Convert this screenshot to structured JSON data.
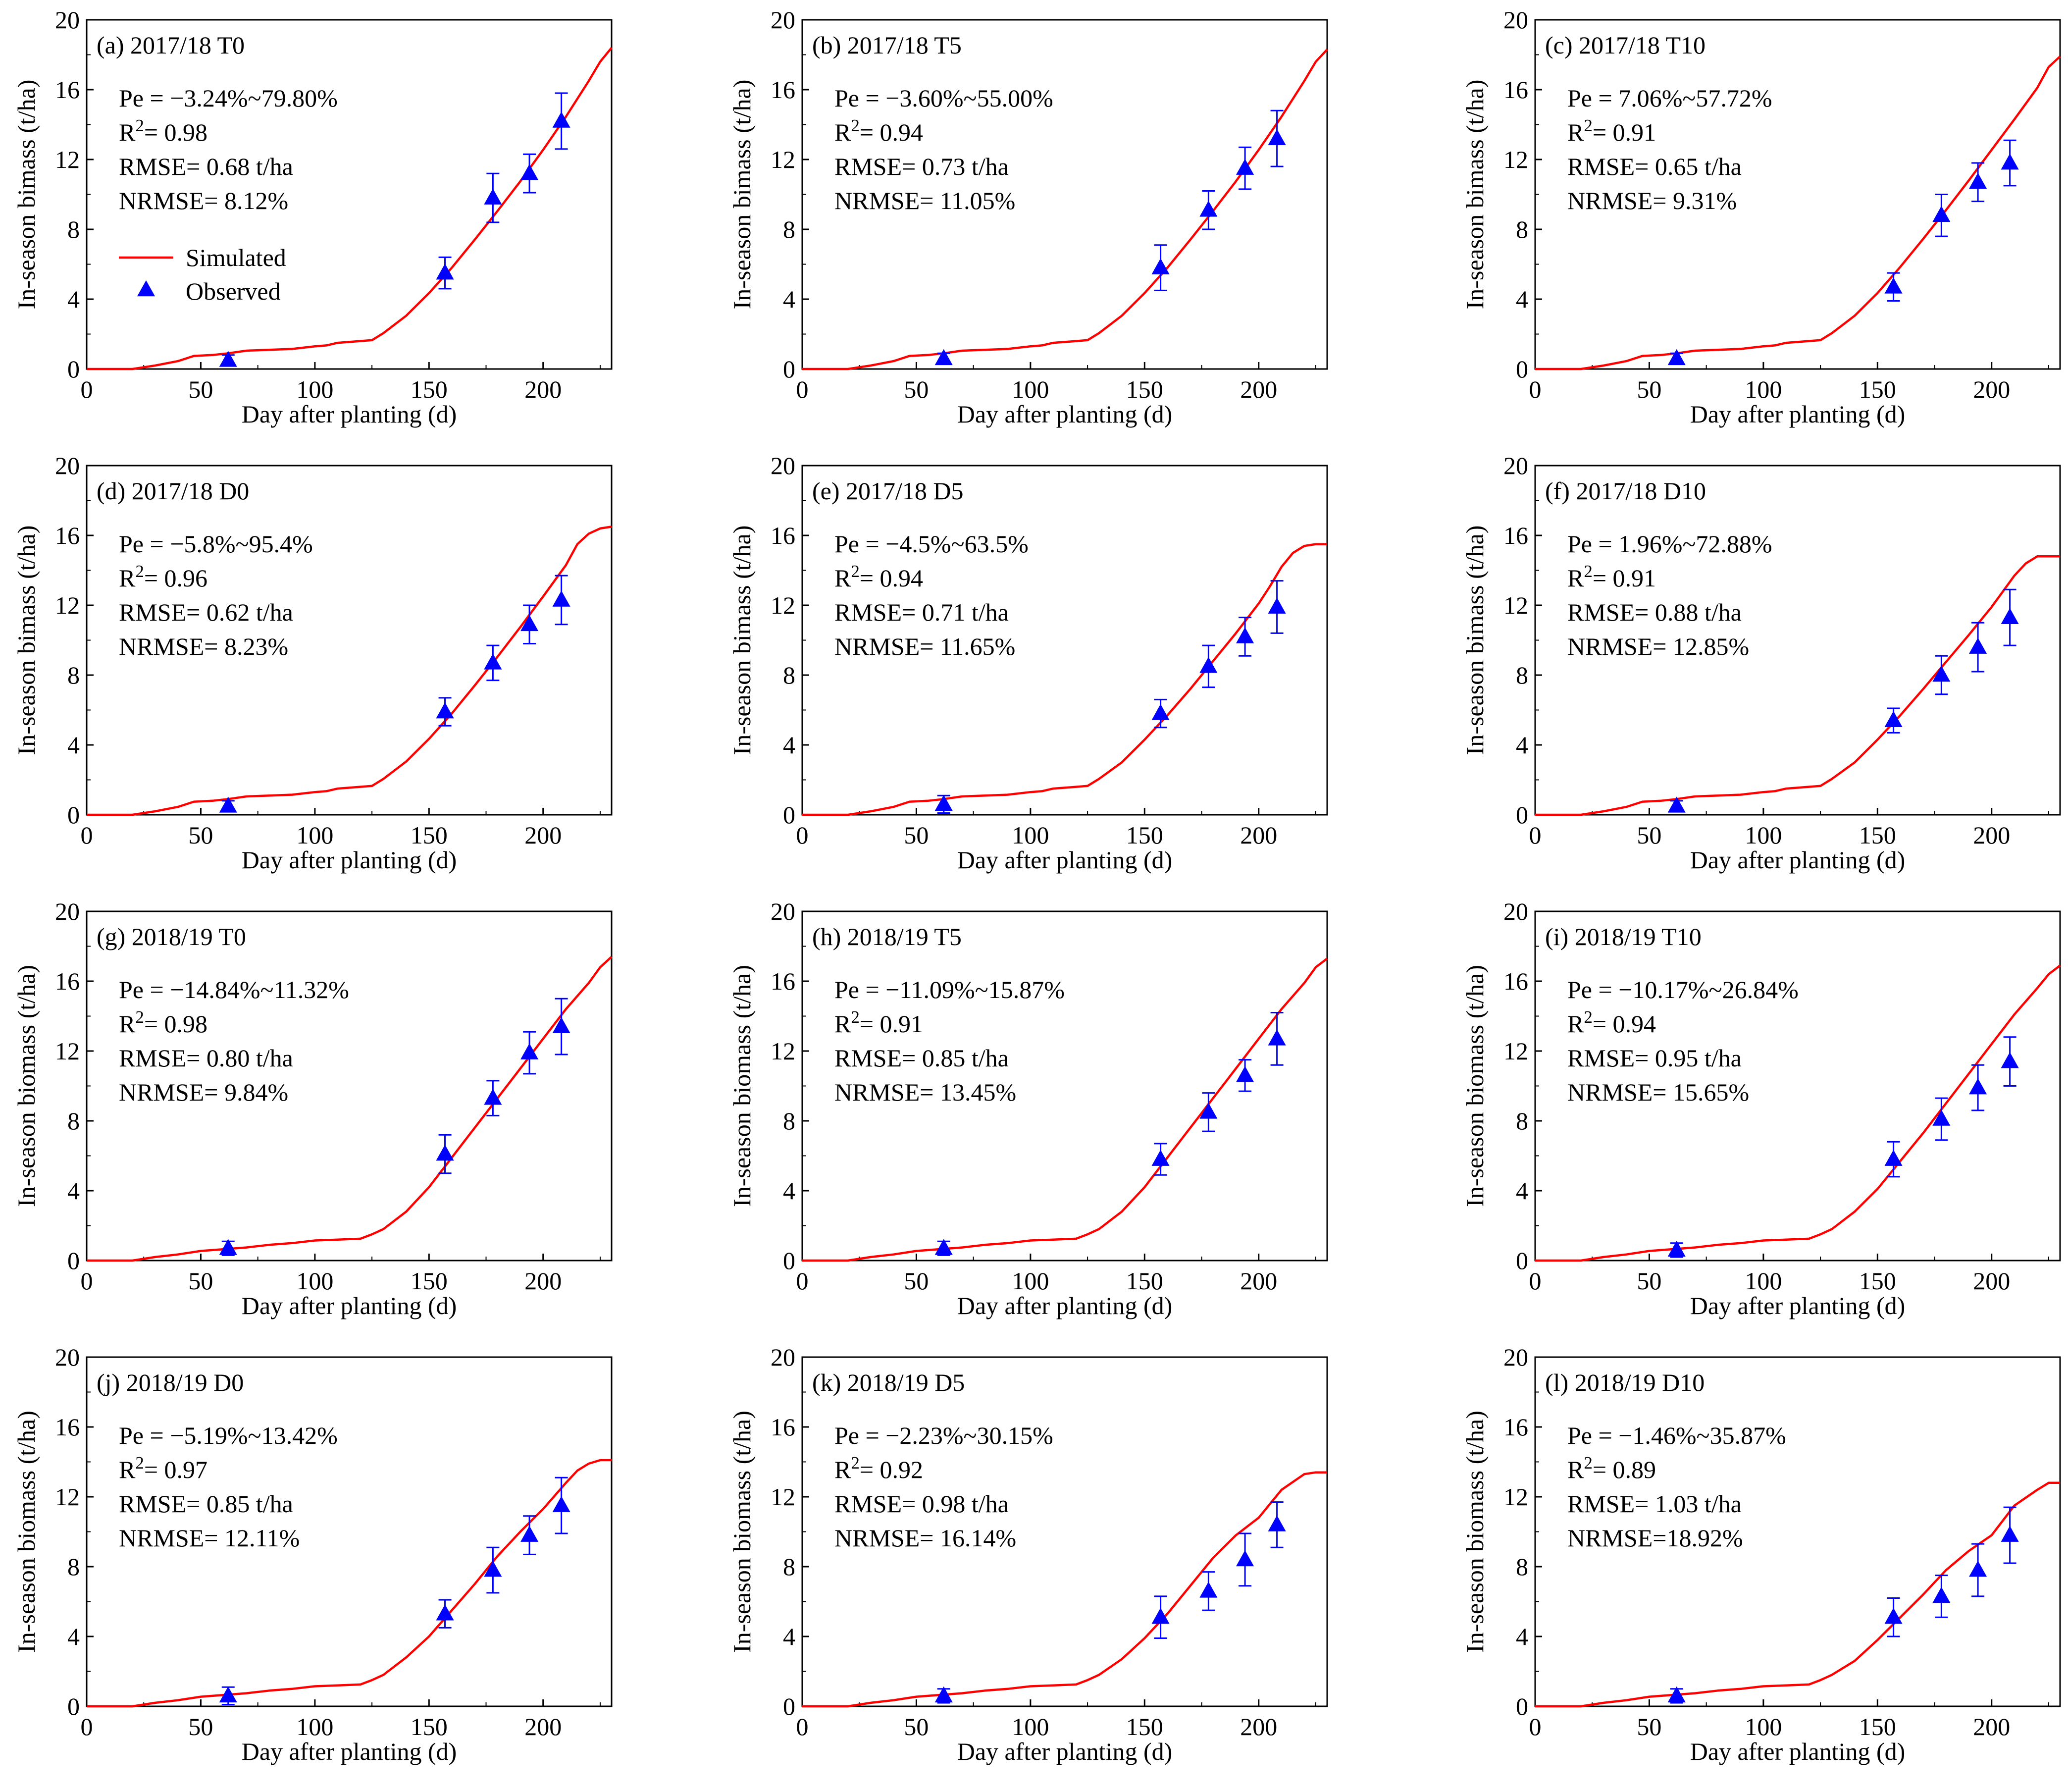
{
  "colors": {
    "simulated": "#ff0000",
    "observed": "#0000ff",
    "axis": "#000000"
  },
  "chart_data": [
    {
      "type": "line",
      "title": "(a) 2017/18 T0",
      "ylabel": "In-season bimass (t/ha)",
      "stats": [
        "Pe = −3.24%~79.80%",
        "R2= 0.98",
        "RMSE= 0.68 t/ha",
        "NRMSE= 8.12%"
      ],
      "simulated": {
        "name": "Simulated",
        "x": [
          0,
          20,
          30,
          40,
          47,
          55,
          62,
          70,
          80,
          90,
          100,
          105,
          110,
          115,
          125,
          130,
          140,
          150,
          160,
          170,
          180,
          190,
          200,
          210,
          220,
          225,
          230
        ],
        "y": [
          0,
          0,
          0.2,
          0.45,
          0.75,
          0.8,
          0.9,
          1.05,
          1.1,
          1.15,
          1.3,
          1.35,
          1.5,
          1.55,
          1.65,
          2.05,
          3.05,
          4.35,
          5.8,
          7.4,
          9.05,
          10.75,
          12.55,
          14.45,
          16.5,
          17.6,
          18.4
        ]
      },
      "observed": {
        "name": "Observed",
        "x": [
          62,
          157,
          178,
          194,
          208
        ],
        "y": [
          0.5,
          5.5,
          9.8,
          11.2,
          14.2
        ],
        "err": [
          0.3,
          0.9,
          1.4,
          1.1,
          1.6
        ]
      },
      "show_legend": true
    },
    {
      "type": "line",
      "title": "(b) 2017/18 T5",
      "ylabel": "In-season bimass (t/ha)",
      "stats": [
        "Pe = −3.60%~55.00%",
        "R2= 0.94",
        "RMSE= 0.73 t/ha",
        "NRMSE= 11.05%"
      ],
      "simulated": {
        "name": "Simulated",
        "x": [
          0,
          20,
          30,
          40,
          47,
          55,
          62,
          70,
          80,
          90,
          100,
          105,
          110,
          115,
          125,
          130,
          140,
          150,
          160,
          170,
          180,
          190,
          200,
          210,
          220,
          225,
          230
        ],
        "y": [
          0,
          0,
          0.2,
          0.45,
          0.75,
          0.8,
          0.9,
          1.05,
          1.1,
          1.15,
          1.3,
          1.35,
          1.5,
          1.55,
          1.65,
          2.05,
          3.05,
          4.35,
          5.8,
          7.4,
          9.05,
          10.75,
          12.55,
          14.45,
          16.5,
          17.6,
          18.3
        ]
      },
      "observed": {
        "name": "Observed",
        "x": [
          62,
          157,
          178,
          194,
          208
        ],
        "y": [
          0.6,
          5.8,
          9.1,
          11.5,
          13.2
        ],
        "err": [
          0.3,
          1.3,
          1.1,
          1.2,
          1.6
        ]
      }
    },
    {
      "type": "line",
      "title": "(c) 2017/18 T10",
      "ylabel": "In-season bimass (t/ha)",
      "stats": [
        "Pe = 7.06%~57.72%",
        "R2= 0.91",
        "RMSE= 0.65 t/ha",
        "NRMSE= 9.31%"
      ],
      "simulated": {
        "name": "Simulated",
        "x": [
          0,
          20,
          30,
          40,
          47,
          55,
          62,
          70,
          80,
          90,
          100,
          105,
          110,
          115,
          125,
          130,
          140,
          150,
          160,
          170,
          180,
          190,
          200,
          210,
          220,
          225,
          230
        ],
        "y": [
          0,
          0,
          0.2,
          0.45,
          0.75,
          0.8,
          0.9,
          1.05,
          1.1,
          1.15,
          1.3,
          1.35,
          1.5,
          1.55,
          1.65,
          2.05,
          3.05,
          4.35,
          5.85,
          7.45,
          9.1,
          10.8,
          12.55,
          14.3,
          16.1,
          17.3,
          17.9
        ]
      },
      "observed": {
        "name": "Observed",
        "x": [
          62,
          157,
          178,
          194,
          208
        ],
        "y": [
          0.6,
          4.7,
          8.8,
          10.7,
          11.8
        ],
        "err": [
          0.3,
          0.8,
          1.2,
          1.1,
          1.3
        ]
      }
    },
    {
      "type": "line",
      "title": "(d) 2017/18 D0",
      "ylabel": "In-season bimass (t/ha)",
      "stats": [
        "Pe = −5.8%~95.4%",
        "R2= 0.96",
        "RMSE= 0.62 t/ha",
        "NRMSE= 8.23%"
      ],
      "simulated": {
        "name": "Simulated",
        "x": [
          0,
          20,
          30,
          40,
          47,
          55,
          62,
          70,
          80,
          90,
          100,
          105,
          110,
          115,
          125,
          130,
          140,
          150,
          160,
          170,
          180,
          190,
          200,
          210,
          215,
          220,
          225,
          230
        ],
        "y": [
          0,
          0,
          0.2,
          0.45,
          0.75,
          0.8,
          0.9,
          1.05,
          1.1,
          1.15,
          1.3,
          1.35,
          1.5,
          1.55,
          1.65,
          2.05,
          3.05,
          4.35,
          5.8,
          7.4,
          9.05,
          10.75,
          12.5,
          14.3,
          15.5,
          16.1,
          16.4,
          16.5
        ]
      },
      "observed": {
        "name": "Observed",
        "x": [
          62,
          157,
          178,
          194,
          208
        ],
        "y": [
          0.5,
          5.9,
          8.7,
          10.9,
          12.3
        ],
        "err": [
          0.3,
          0.8,
          1.0,
          1.1,
          1.4
        ]
      }
    },
    {
      "type": "line",
      "title": "(e) 2017/18 D5",
      "ylabel": "In-season bimass (t/ha)",
      "stats": [
        "Pe = −4.5%~63.5%",
        "R2= 0.94",
        "RMSE= 0.71 t/ha",
        "NRMSE= 11.65%"
      ],
      "simulated": {
        "name": "Simulated",
        "x": [
          0,
          20,
          30,
          40,
          47,
          55,
          62,
          70,
          80,
          90,
          100,
          105,
          110,
          115,
          125,
          130,
          140,
          150,
          160,
          170,
          180,
          190,
          200,
          205,
          210,
          215,
          220,
          225,
          230
        ],
        "y": [
          0,
          0,
          0.2,
          0.45,
          0.75,
          0.8,
          0.9,
          1.05,
          1.1,
          1.15,
          1.3,
          1.35,
          1.5,
          1.55,
          1.65,
          2.05,
          3.0,
          4.3,
          5.7,
          7.2,
          8.8,
          10.4,
          12.1,
          13.1,
          14.2,
          15.0,
          15.4,
          15.5,
          15.5
        ]
      },
      "observed": {
        "name": "Observed",
        "x": [
          62,
          157,
          178,
          194,
          208
        ],
        "y": [
          0.6,
          5.8,
          8.5,
          10.2,
          11.9
        ],
        "err": [
          0.5,
          0.8,
          1.2,
          1.1,
          1.5
        ]
      }
    },
    {
      "type": "line",
      "title": "(f) 2017/18 D10",
      "ylabel": "In-season bimass (t/ha)",
      "stats": [
        "Pe = 1.96%~72.88%",
        "R2= 0.91",
        "RMSE= 0.88 t/ha",
        "NRMSE= 12.85%"
      ],
      "simulated": {
        "name": "Simulated",
        "x": [
          0,
          20,
          30,
          40,
          47,
          55,
          62,
          70,
          80,
          90,
          100,
          105,
          110,
          115,
          125,
          130,
          140,
          150,
          160,
          170,
          180,
          190,
          200,
          205,
          210,
          215,
          220,
          225,
          230
        ],
        "y": [
          0,
          0,
          0.2,
          0.45,
          0.75,
          0.8,
          0.9,
          1.05,
          1.1,
          1.15,
          1.3,
          1.35,
          1.5,
          1.55,
          1.65,
          2.05,
          3.0,
          4.3,
          5.7,
          7.2,
          8.75,
          10.3,
          11.9,
          12.8,
          13.7,
          14.4,
          14.8,
          14.8,
          14.8
        ]
      },
      "observed": {
        "name": "Observed",
        "x": [
          62,
          157,
          178,
          194,
          208
        ],
        "y": [
          0.5,
          5.4,
          8.0,
          9.6,
          11.3
        ],
        "err": [
          0.3,
          0.7,
          1.1,
          1.4,
          1.6
        ]
      }
    },
    {
      "type": "line",
      "title": "(g) 2018/19 T0",
      "ylabel": "In-season biomass (t/ha)",
      "stats": [
        "Pe = −14.84%~11.32%",
        "R2= 0.98",
        "RMSE= 0.80 t/ha",
        "NRMSE= 9.84%"
      ],
      "simulated": {
        "name": "Simulated",
        "x": [
          0,
          20,
          30,
          40,
          50,
          60,
          70,
          80,
          90,
          100,
          110,
          120,
          125,
          130,
          140,
          150,
          160,
          170,
          180,
          190,
          200,
          210,
          220,
          225,
          230
        ],
        "y": [
          0,
          0,
          0.2,
          0.35,
          0.55,
          0.65,
          0.75,
          0.9,
          1.0,
          1.15,
          1.2,
          1.25,
          1.5,
          1.8,
          2.8,
          4.2,
          5.9,
          7.6,
          9.3,
          11.0,
          12.7,
          14.4,
          15.9,
          16.8,
          17.4
        ]
      },
      "observed": {
        "name": "Observed",
        "x": [
          62,
          157,
          178,
          194,
          208
        ],
        "y": [
          0.7,
          6.1,
          9.3,
          11.9,
          13.4
        ],
        "err": [
          0.4,
          1.1,
          1.0,
          1.2,
          1.6
        ]
      }
    },
    {
      "type": "line",
      "title": "(h) 2018/19 T5",
      "ylabel": "In-season biomass (t/ha)",
      "stats": [
        "Pe = −11.09%~15.87%",
        "R2= 0.91",
        "RMSE= 0.85 t/ha",
        "NRMSE= 13.45%"
      ],
      "simulated": {
        "name": "Simulated",
        "x": [
          0,
          20,
          30,
          40,
          50,
          60,
          70,
          80,
          90,
          100,
          110,
          120,
          125,
          130,
          140,
          150,
          160,
          170,
          180,
          190,
          200,
          210,
          220,
          225,
          230
        ],
        "y": [
          0,
          0,
          0.2,
          0.35,
          0.55,
          0.65,
          0.75,
          0.9,
          1.0,
          1.15,
          1.2,
          1.25,
          1.5,
          1.8,
          2.8,
          4.2,
          5.9,
          7.6,
          9.3,
          11.0,
          12.7,
          14.4,
          15.9,
          16.8,
          17.3
        ]
      },
      "observed": {
        "name": "Observed",
        "x": [
          62,
          157,
          178,
          194,
          208
        ],
        "y": [
          0.7,
          5.8,
          8.5,
          10.6,
          12.7
        ],
        "err": [
          0.4,
          0.9,
          1.1,
          0.9,
          1.5
        ]
      }
    },
    {
      "type": "line",
      "title": "(i) 2018/19 T10",
      "ylabel": "In-season biomass (t/ha)",
      "stats": [
        "Pe = −10.17%~26.84%",
        "R2= 0.94",
        "RMSE= 0.95 t/ha",
        "NRMSE= 15.65%"
      ],
      "simulated": {
        "name": "Simulated",
        "x": [
          0,
          20,
          30,
          40,
          50,
          60,
          70,
          80,
          90,
          100,
          110,
          120,
          125,
          130,
          140,
          150,
          160,
          170,
          180,
          190,
          200,
          210,
          220,
          225,
          230
        ],
        "y": [
          0,
          0,
          0.2,
          0.35,
          0.55,
          0.65,
          0.75,
          0.9,
          1.0,
          1.15,
          1.2,
          1.25,
          1.5,
          1.8,
          2.8,
          4.1,
          5.7,
          7.3,
          9.0,
          10.7,
          12.4,
          14.1,
          15.6,
          16.4,
          16.9
        ]
      },
      "observed": {
        "name": "Observed",
        "x": [
          62,
          157,
          178,
          194,
          208
        ],
        "y": [
          0.6,
          5.8,
          8.1,
          9.9,
          11.4
        ],
        "err": [
          0.4,
          1.0,
          1.2,
          1.3,
          1.4
        ]
      }
    },
    {
      "type": "line",
      "title": "(j) 2018/19 D0",
      "ylabel": "In-season biomass (t/ha)",
      "stats": [
        "Pe = −5.19%~13.42%",
        "R2= 0.97",
        "RMSE= 0.85 t/ha",
        "NRMSE= 12.11%"
      ],
      "simulated": {
        "name": "Simulated",
        "x": [
          0,
          20,
          30,
          40,
          50,
          60,
          70,
          80,
          90,
          100,
          110,
          120,
          125,
          130,
          140,
          150,
          160,
          170,
          180,
          190,
          200,
          210,
          215,
          220,
          225,
          230
        ],
        "y": [
          0,
          0,
          0.2,
          0.35,
          0.55,
          0.65,
          0.75,
          0.9,
          1.0,
          1.15,
          1.2,
          1.25,
          1.5,
          1.8,
          2.8,
          4.0,
          5.5,
          7.0,
          8.6,
          10.0,
          11.3,
          12.8,
          13.5,
          13.9,
          14.1,
          14.1
        ]
      },
      "observed": {
        "name": "Observed",
        "x": [
          62,
          157,
          178,
          194,
          208
        ],
        "y": [
          0.6,
          5.3,
          7.8,
          9.8,
          11.5
        ],
        "err": [
          0.5,
          0.8,
          1.3,
          1.1,
          1.6
        ]
      }
    },
    {
      "type": "line",
      "title": "(k) 2018/19 D5",
      "ylabel": "In-season biomass (t/ha)",
      "stats": [
        "Pe = −2.23%~30.15%",
        "R2= 0.92",
        "RMSE= 0.98 t/ha",
        "NRMSE= 16.14%"
      ],
      "simulated": {
        "name": "Simulated",
        "x": [
          0,
          20,
          30,
          40,
          50,
          60,
          70,
          80,
          90,
          100,
          110,
          120,
          125,
          130,
          140,
          150,
          160,
          170,
          180,
          190,
          200,
          210,
          220,
          225,
          230
        ],
        "y": [
          0,
          0,
          0.2,
          0.35,
          0.55,
          0.65,
          0.75,
          0.9,
          1.0,
          1.15,
          1.2,
          1.25,
          1.5,
          1.8,
          2.7,
          3.9,
          5.3,
          6.9,
          8.5,
          9.8,
          10.8,
          12.4,
          13.3,
          13.4,
          13.4
        ]
      },
      "observed": {
        "name": "Observed",
        "x": [
          62,
          157,
          178,
          194,
          208
        ],
        "y": [
          0.6,
          5.1,
          6.6,
          8.4,
          10.4
        ],
        "err": [
          0.4,
          1.2,
          1.1,
          1.5,
          1.3
        ]
      }
    },
    {
      "type": "line",
      "title": "(l) 2018/19 D10",
      "ylabel": "In-season biomass (t/ha)",
      "stats": [
        "Pe = −1.46%~35.87%",
        "R2= 0.89",
        "RMSE= 1.03 t/ha",
        "NRMSE=18.92%"
      ],
      "simulated": {
        "name": "Simulated",
        "x": [
          0,
          20,
          30,
          40,
          50,
          60,
          70,
          80,
          90,
          100,
          110,
          120,
          125,
          130,
          140,
          150,
          160,
          170,
          180,
          190,
          200,
          210,
          220,
          225,
          230
        ],
        "y": [
          0,
          0,
          0.2,
          0.35,
          0.55,
          0.65,
          0.75,
          0.9,
          1.0,
          1.15,
          1.2,
          1.25,
          1.5,
          1.8,
          2.6,
          3.8,
          5.1,
          6.4,
          7.8,
          8.9,
          9.8,
          11.5,
          12.4,
          12.8,
          12.8
        ]
      },
      "observed": {
        "name": "Observed",
        "x": [
          62,
          157,
          178,
          194,
          208
        ],
        "y": [
          0.6,
          5.1,
          6.3,
          7.8,
          9.8
        ],
        "err": [
          0.4,
          1.1,
          1.2,
          1.5,
          1.6
        ]
      }
    }
  ],
  "axes": {
    "xlabel": "Day after planting (d)",
    "xlim": [
      0,
      230
    ],
    "ylim": [
      0,
      20
    ],
    "xticks": [
      0,
      50,
      100,
      150,
      200
    ],
    "yticks": [
      0,
      4,
      8,
      12,
      16,
      20
    ]
  },
  "legend": {
    "simulated_label": "Simulated",
    "observed_label": "Observed"
  }
}
